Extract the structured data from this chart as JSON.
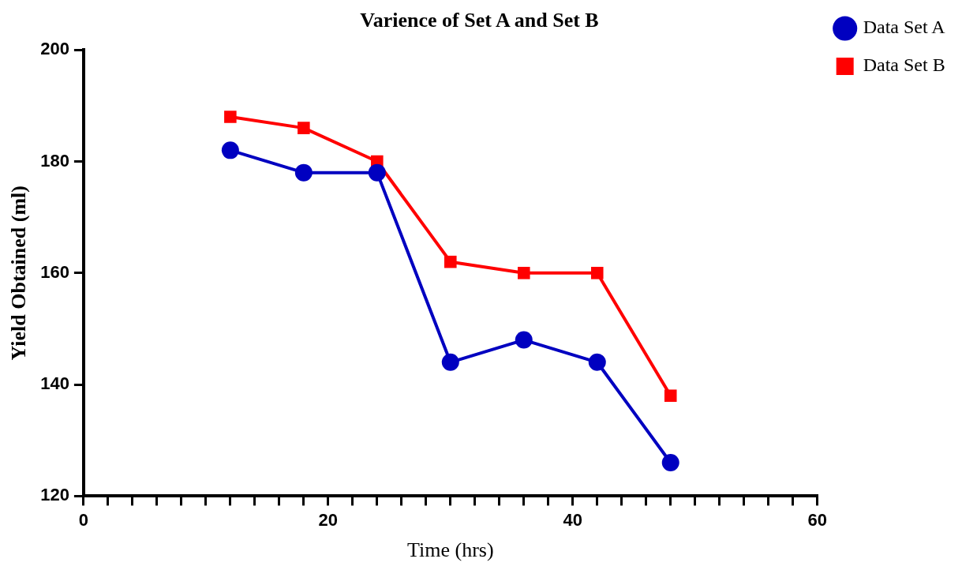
{
  "chart_data": {
    "type": "line",
    "title": "Varience of Set A and Set B",
    "xlabel": "Time (hrs)",
    "ylabel": "Yield Obtained (ml)",
    "x": [
      12,
      18,
      24,
      30,
      36,
      42,
      48
    ],
    "series": [
      {
        "name": "Data Set A",
        "color": "#0000c0",
        "marker": "circle",
        "values": [
          182,
          178,
          178,
          144,
          148,
          144,
          126
        ]
      },
      {
        "name": "Data Set B",
        "color": "#ff0000",
        "marker": "square",
        "values": [
          188,
          186,
          180,
          162,
          160,
          160,
          138
        ]
      }
    ],
    "xlim": [
      0,
      60
    ],
    "xticks": [
      0,
      {
        "value": 2,
        "label": null
      },
      {
        "value": 4,
        "label": null
      },
      {
        "value": 6,
        "label": null
      },
      {
        "value": 8,
        "label": null
      },
      {
        "value": 10,
        "label": null
      },
      {
        "value": 12,
        "label": null
      },
      {
        "value": 14,
        "label": null
      },
      {
        "value": 16,
        "label": null
      },
      {
        "value": 18,
        "label": null
      },
      20,
      {
        "value": 22,
        "label": null
      },
      {
        "value": 24,
        "label": null
      },
      {
        "value": 26,
        "label": null
      },
      {
        "value": 28,
        "label": null
      },
      {
        "value": 30,
        "label": null
      },
      {
        "value": 32,
        "label": null
      },
      {
        "value": 34,
        "label": null
      },
      {
        "value": 36,
        "label": null
      },
      {
        "value": 38,
        "label": null
      },
      40,
      {
        "value": 42,
        "label": null
      },
      {
        "value": 44,
        "label": null
      },
      {
        "value": 46,
        "label": null
      },
      {
        "value": 48,
        "label": null
      },
      {
        "value": 50,
        "label": null
      },
      {
        "value": 52,
        "label": null
      },
      {
        "value": 54,
        "label": null
      },
      {
        "value": 56,
        "label": null
      },
      {
        "value": 58,
        "label": null
      },
      60
    ],
    "ylim": [
      120,
      200
    ],
    "yticks": [
      120,
      140,
      160,
      180,
      200
    ],
    "grid": false,
    "legend": "top right",
    "line_style": "solid"
  }
}
